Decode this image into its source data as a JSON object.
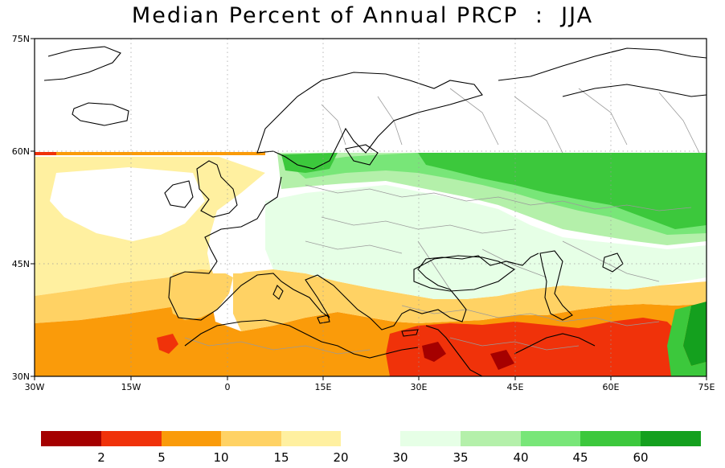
{
  "title": "Median Percent of Annual PRCP  :  JJA",
  "map": {
    "lat_labels": [
      "75N",
      "60N",
      "45N",
      "30N"
    ],
    "lon_labels": [
      "30W",
      "15W",
      "0",
      "15E",
      "30E",
      "45E",
      "60E",
      "75E"
    ],
    "colors": {
      "ocean": "#ffffff",
      "coast": "#000000",
      "borders": "#9a9a9a",
      "gridline": "#9a9a9a"
    }
  },
  "colorbar": {
    "labels": [
      "2",
      "5",
      "10",
      "15",
      "20",
      "30",
      "35",
      "40",
      "45",
      "60"
    ],
    "low_colors": [
      "#a50000",
      "#f0320a",
      "#fa9b0a",
      "#ffd264",
      "#fff0a0"
    ],
    "high_colors": [
      "#e6ffe6",
      "#b4f0aa",
      "#78e678",
      "#3cc83c",
      "#14a01e"
    ]
  }
}
